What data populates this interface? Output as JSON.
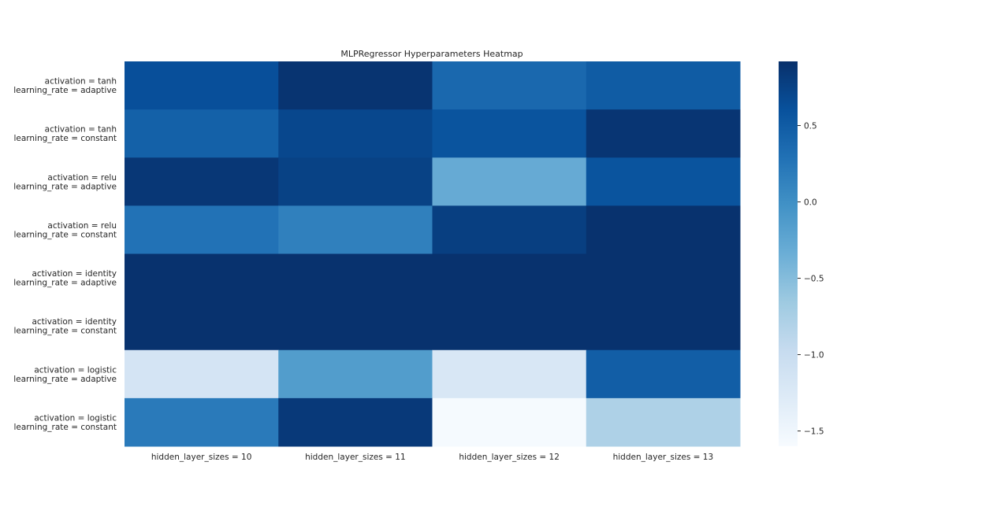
{
  "chart_data": {
    "type": "heatmap",
    "title": "MLPRegressor Hyperparameters Heatmap",
    "xlabel": "",
    "ylabel": "",
    "x_categories": [
      "hidden_layer_sizes = 10",
      "hidden_layer_sizes = 11",
      "hidden_layer_sizes = 12",
      "hidden_layer_sizes = 13"
    ],
    "y_categories": [
      [
        "activation = tanh",
        "learning_rate = adaptive"
      ],
      [
        "activation = tanh",
        "learning_rate = constant"
      ],
      [
        "activation = relu",
        "learning_rate = adaptive"
      ],
      [
        "activation = relu",
        "learning_rate = constant"
      ],
      [
        "activation = identity",
        "learning_rate = adaptive"
      ],
      [
        "activation = identity",
        "learning_rate = constant"
      ],
      [
        "activation = logistic",
        "learning_rate = adaptive"
      ],
      [
        "activation = logistic",
        "learning_rate = constant"
      ]
    ],
    "values": [
      [
        0.62,
        0.88,
        0.38,
        0.5
      ],
      [
        0.45,
        0.7,
        0.58,
        0.87
      ],
      [
        0.85,
        0.75,
        -0.3,
        0.58
      ],
      [
        0.28,
        0.15,
        0.78,
        0.9
      ],
      [
        0.9,
        0.9,
        0.9,
        0.9
      ],
      [
        0.9,
        0.9,
        0.9,
        0.9
      ],
      [
        -1.15,
        -0.15,
        -1.2,
        0.48
      ],
      [
        0.2,
        0.83,
        -1.58,
        -0.78
      ]
    ],
    "colorbar": {
      "cmap": "Blues",
      "vmin": -1.6,
      "vmax": 0.92,
      "ticks": [
        0.5,
        0.0,
        -0.5,
        -1.0,
        -1.5
      ],
      "tick_labels": [
        "0.5",
        "0.0",
        "−0.5",
        "−1.0",
        "−1.5"
      ]
    }
  }
}
